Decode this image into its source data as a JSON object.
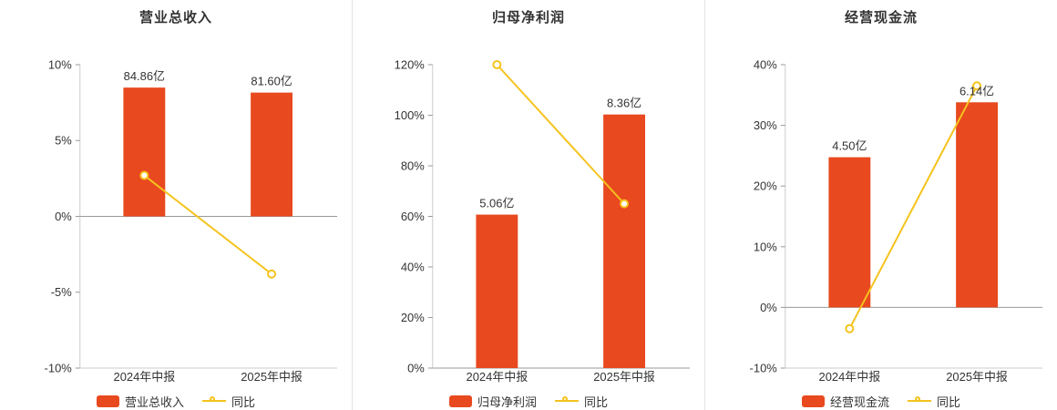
{
  "colors": {
    "bar": "#e8491f",
    "line": "#f5c31d",
    "marker_fill": "#ffffff",
    "axis_line": "#999999",
    "grid_line": "#cccccc",
    "text": "#333333",
    "divider": "#e4e4e4",
    "background": "#ffffff"
  },
  "chart_data": [
    {
      "type": "bar",
      "title": "营业总收入",
      "categories": [
        "2024年中报",
        "2025年中报"
      ],
      "bar_series": {
        "name": "营业总收入",
        "value_labels": [
          "84.86亿",
          "81.60亿"
        ],
        "values_yi": [
          84.86,
          81.6
        ],
        "axis_display_values": [
          8.49,
          8.16
        ]
      },
      "line_series": {
        "name": "同比",
        "type": "line",
        "values_pct": [
          2.7,
          -3.8
        ]
      },
      "y_axis": {
        "min": -10,
        "max": 10,
        "step": 5,
        "tick_labels": [
          "10%",
          "5%",
          "0%",
          "-5%",
          "-10%"
        ]
      },
      "legend_position": "bottom",
      "grid": false
    },
    {
      "type": "bar",
      "title": "归母净利润",
      "categories": [
        "2024年中报",
        "2025年中报"
      ],
      "bar_series": {
        "name": "归母净利润",
        "value_labels": [
          "5.06亿",
          "8.36亿"
        ],
        "values_yi": [
          5.06,
          8.36
        ],
        "axis_display_values": [
          60.7,
          100.3
        ]
      },
      "line_series": {
        "name": "同比",
        "type": "line",
        "values_pct": [
          120,
          65
        ]
      },
      "y_axis": {
        "min": 0,
        "max": 120,
        "step": 20,
        "tick_labels": [
          "120%",
          "100%",
          "80%",
          "60%",
          "40%",
          "20%",
          "0%"
        ]
      },
      "legend_position": "bottom",
      "grid": false
    },
    {
      "type": "bar",
      "title": "经营现金流",
      "categories": [
        "2024年中报",
        "2025年中报"
      ],
      "bar_series": {
        "name": "经营现金流",
        "value_labels": [
          "4.50亿",
          "6.14亿"
        ],
        "values_yi": [
          4.5,
          6.14
        ],
        "axis_display_values": [
          24.75,
          33.8
        ]
      },
      "line_series": {
        "name": "同比",
        "type": "line",
        "values_pct": [
          -3.5,
          36.5
        ]
      },
      "y_axis": {
        "min": -10,
        "max": 40,
        "step": 10,
        "tick_labels": [
          "40%",
          "30%",
          "20%",
          "10%",
          "0%",
          "-10%"
        ]
      },
      "legend_position": "bottom",
      "grid": false
    }
  ]
}
